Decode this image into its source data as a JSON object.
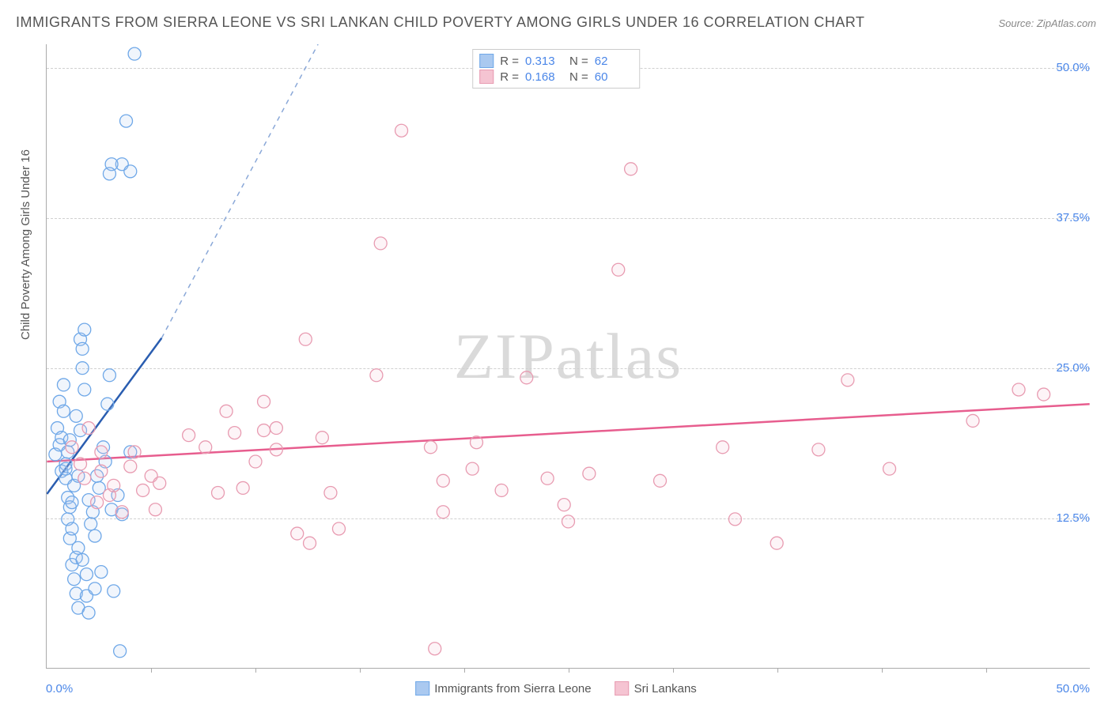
{
  "title": "IMMIGRANTS FROM SIERRA LEONE VS SRI LANKAN CHILD POVERTY AMONG GIRLS UNDER 16 CORRELATION CHART",
  "source": "Source: ZipAtlas.com",
  "ylabel": "Child Poverty Among Girls Under 16",
  "watermark": "ZIPatlas",
  "chart": {
    "type": "scatter",
    "xlim": [
      0,
      50
    ],
    "ylim": [
      0,
      52
    ],
    "x_ticks_minor_step": 5,
    "y_gridlines": [
      12.5,
      25.0,
      37.5,
      50.0
    ],
    "y_tick_labels": [
      "12.5%",
      "25.0%",
      "37.5%",
      "50.0%"
    ],
    "x_axis_start_label": "0.0%",
    "x_axis_end_label": "50.0%",
    "background_color": "#ffffff",
    "grid_color": "#d0d0d0",
    "axis_color": "#aaaaaa",
    "tick_label_color": "#4a86e8",
    "title_color": "#555555",
    "title_fontsize": 18,
    "label_fontsize": 15,
    "marker_radius": 8,
    "marker_stroke_width": 1.3,
    "marker_fill_opacity": 0.18
  },
  "series": [
    {
      "name": "Immigrants from Sierra Leone",
      "color_stroke": "#6fa8e8",
      "color_fill": "#aac9f0",
      "R": "0.313",
      "N": "62",
      "trend": {
        "x1": 0,
        "y1": 14.5,
        "x2_solid": 5.5,
        "y2_solid": 27.5,
        "x2_dashed": 13.0,
        "y2_dashed": 52,
        "solid_color": "#2a5db0",
        "dashed_color": "#8aa8d8",
        "width": 2.5
      },
      "points": [
        [
          0.4,
          17.8
        ],
        [
          0.5,
          20.0
        ],
        [
          0.6,
          18.6
        ],
        [
          0.6,
          22.2
        ],
        [
          0.7,
          16.4
        ],
        [
          0.7,
          19.2
        ],
        [
          0.8,
          21.4
        ],
        [
          0.8,
          23.6
        ],
        [
          0.9,
          15.8
        ],
        [
          0.9,
          17.0
        ],
        [
          1.0,
          18.0
        ],
        [
          1.0,
          12.4
        ],
        [
          1.0,
          14.2
        ],
        [
          1.1,
          10.8
        ],
        [
          1.1,
          13.4
        ],
        [
          1.2,
          11.6
        ],
        [
          1.2,
          8.6
        ],
        [
          1.3,
          7.4
        ],
        [
          1.3,
          15.2
        ],
        [
          1.4,
          6.2
        ],
        [
          1.4,
          9.2
        ],
        [
          1.5,
          5.0
        ],
        [
          1.5,
          16.0
        ],
        [
          1.6,
          19.8
        ],
        [
          1.6,
          27.4
        ],
        [
          1.7,
          26.6
        ],
        [
          1.7,
          25.0
        ],
        [
          1.8,
          23.2
        ],
        [
          1.8,
          28.2
        ],
        [
          1.9,
          6.0
        ],
        [
          1.9,
          7.8
        ],
        [
          2.0,
          4.6
        ],
        [
          2.0,
          14.0
        ],
        [
          2.1,
          12.0
        ],
        [
          2.2,
          13.0
        ],
        [
          2.3,
          6.6
        ],
        [
          2.3,
          11.0
        ],
        [
          2.5,
          15.0
        ],
        [
          2.6,
          8.0
        ],
        [
          2.7,
          18.4
        ],
        [
          2.8,
          17.2
        ],
        [
          2.9,
          22.0
        ],
        [
          3.0,
          24.4
        ],
        [
          3.1,
          13.2
        ],
        [
          3.2,
          6.4
        ],
        [
          3.4,
          14.4
        ],
        [
          3.5,
          1.4
        ],
        [
          3.6,
          12.8
        ],
        [
          3.6,
          42.0
        ],
        [
          3.1,
          42.0
        ],
        [
          4.0,
          41.4
        ],
        [
          3.0,
          41.2
        ],
        [
          4.2,
          51.2
        ],
        [
          3.8,
          45.6
        ],
        [
          4.0,
          18.0
        ],
        [
          1.2,
          13.8
        ],
        [
          0.9,
          16.6
        ],
        [
          1.1,
          19.0
        ],
        [
          1.4,
          21.0
        ],
        [
          1.5,
          10.0
        ],
        [
          1.7,
          9.0
        ],
        [
          2.4,
          16.0
        ]
      ]
    },
    {
      "name": "Sri Lankans",
      "color_stroke": "#e89bb1",
      "color_fill": "#f5c4d2",
      "R": "0.168",
      "N": "60",
      "trend": {
        "x1": 0,
        "y1": 17.2,
        "x2_solid": 50,
        "y2_solid": 22.0,
        "solid_color": "#e75d8e",
        "width": 2.5
      },
      "points": [
        [
          1.2,
          18.4
        ],
        [
          1.6,
          17.0
        ],
        [
          1.8,
          15.8
        ],
        [
          2.0,
          20.0
        ],
        [
          2.4,
          13.8
        ],
        [
          2.6,
          16.4
        ],
        [
          2.6,
          18.0
        ],
        [
          3.0,
          14.4
        ],
        [
          3.2,
          15.2
        ],
        [
          3.6,
          13.0
        ],
        [
          4.0,
          16.8
        ],
        [
          4.2,
          18.0
        ],
        [
          4.6,
          14.8
        ],
        [
          5.0,
          16.0
        ],
        [
          5.2,
          13.2
        ],
        [
          5.4,
          15.4
        ],
        [
          6.8,
          19.4
        ],
        [
          7.6,
          18.4
        ],
        [
          8.2,
          14.6
        ],
        [
          8.6,
          21.4
        ],
        [
          9.0,
          19.6
        ],
        [
          9.4,
          15.0
        ],
        [
          10.0,
          17.2
        ],
        [
          10.4,
          19.8
        ],
        [
          10.4,
          22.2
        ],
        [
          11.0,
          20.0
        ],
        [
          11.0,
          18.2
        ],
        [
          12.0,
          11.2
        ],
        [
          12.4,
          27.4
        ],
        [
          12.6,
          10.4
        ],
        [
          13.2,
          19.2
        ],
        [
          13.6,
          14.6
        ],
        [
          14.0,
          11.6
        ],
        [
          15.8,
          24.4
        ],
        [
          16.0,
          35.4
        ],
        [
          17.0,
          44.8
        ],
        [
          18.6,
          1.6
        ],
        [
          18.4,
          18.4
        ],
        [
          19.0,
          15.6
        ],
        [
          19.0,
          13.0
        ],
        [
          20.4,
          16.6
        ],
        [
          20.6,
          18.8
        ],
        [
          21.8,
          14.8
        ],
        [
          23.0,
          24.2
        ],
        [
          24.0,
          15.8
        ],
        [
          24.8,
          13.6
        ],
        [
          25.0,
          12.2
        ],
        [
          26.0,
          16.2
        ],
        [
          27.4,
          33.2
        ],
        [
          28.0,
          41.6
        ],
        [
          29.4,
          15.6
        ],
        [
          32.4,
          18.4
        ],
        [
          33.0,
          12.4
        ],
        [
          35.0,
          10.4
        ],
        [
          37.0,
          18.2
        ],
        [
          38.4,
          24.0
        ],
        [
          40.4,
          16.6
        ],
        [
          44.4,
          20.6
        ],
        [
          46.6,
          23.2
        ],
        [
          47.8,
          22.8
        ]
      ]
    }
  ],
  "bottom_legend": [
    {
      "label": "Immigrants from Sierra Leone",
      "fill": "#aac9f0",
      "stroke": "#6fa8e8"
    },
    {
      "label": "Sri Lankans",
      "fill": "#f5c4d2",
      "stroke": "#e89bb1"
    }
  ]
}
